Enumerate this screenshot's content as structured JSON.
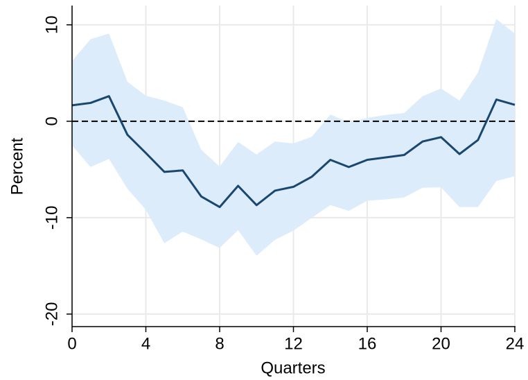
{
  "chart_data": {
    "type": "line",
    "x_label": "Quarters",
    "y_label": "Percent",
    "x": [
      0,
      1,
      2,
      3,
      4,
      5,
      6,
      7,
      8,
      9,
      10,
      11,
      12,
      13,
      14,
      15,
      16,
      17,
      18,
      19,
      20,
      21,
      22,
      23,
      24
    ],
    "series": [
      {
        "color": "#1a476f",
        "values": [
          1.65,
          1.9,
          2.6,
          -1.4,
          -3.3,
          -5.25,
          -5.1,
          -7.8,
          -8.9,
          -6.7,
          -8.7,
          -7.2,
          -6.8,
          -5.75,
          -4.0,
          -4.75,
          -4.0,
          -3.75,
          -3.5,
          -2.1,
          -1.65,
          -3.4,
          -1.95,
          2.25,
          1.7
        ]
      }
    ],
    "band": {
      "color": "#dcecfb",
      "upper": [
        6.25,
        8.5,
        9.1,
        4.1,
        2.65,
        2.15,
        1.45,
        -2.95,
        -4.7,
        -2.15,
        -3.45,
        -2.1,
        -2.3,
        -1.6,
        0.7,
        -0.15,
        0.35,
        0.65,
        0.85,
        2.6,
        3.4,
        2.15,
        5.05,
        10.6,
        9.1
      ],
      "lower": [
        -2.5,
        -4.75,
        -3.9,
        -7.0,
        -9.2,
        -12.65,
        -11.45,
        -12.25,
        -13.15,
        -11.3,
        -13.95,
        -12.3,
        -11.35,
        -10.0,
        -8.7,
        -9.3,
        -8.25,
        -8.1,
        -7.9,
        -6.9,
        -6.85,
        -8.9,
        -8.9,
        -6.2,
        -5.7
      ]
    },
    "reference_line": 0,
    "xlim": [
      0,
      24
    ],
    "xticks": [
      0,
      4,
      8,
      12,
      16,
      20,
      24
    ],
    "ylim": [
      -21.3,
      12
    ],
    "yticks": [
      -20,
      -10,
      0,
      10
    ],
    "grid": true
  }
}
